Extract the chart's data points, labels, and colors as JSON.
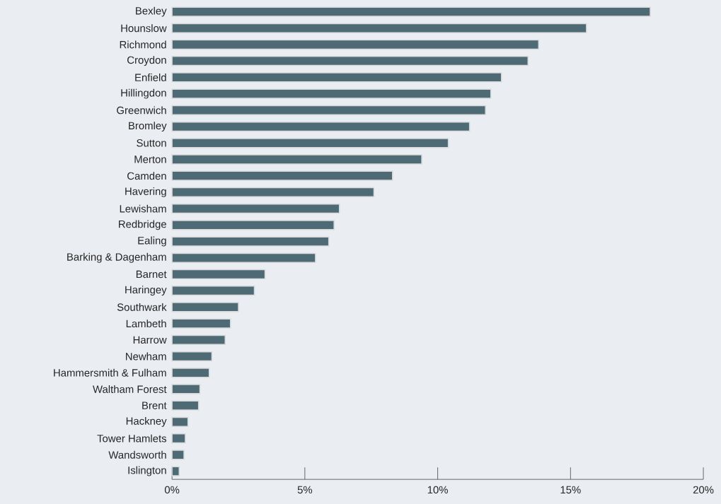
{
  "chart_data": {
    "type": "bar",
    "orientation": "horizontal",
    "categories": [
      "Bexley",
      "Hounslow",
      "Richmond",
      "Croydon",
      "Enfield",
      "Hillingdon",
      "Greenwich",
      "Bromley",
      "Sutton",
      "Merton",
      "Camden",
      "Havering",
      "Lewisham",
      "Redbridge",
      "Ealing",
      "Barking & Dagenham",
      "Barnet",
      "Haringey",
      "Southwark",
      "Lambeth",
      "Harrow",
      "Newham",
      "Hammersmith & Fulham",
      "Waltham Forest",
      "Brent",
      "Hackney",
      "Tower Hamlets",
      "Wandsworth",
      "Islington"
    ],
    "values": [
      18.0,
      15.6,
      13.8,
      13.4,
      12.4,
      12.0,
      11.8,
      11.2,
      10.4,
      9.4,
      8.3,
      7.6,
      6.3,
      6.1,
      5.9,
      5.4,
      3.5,
      3.1,
      2.5,
      2.2,
      2.0,
      1.5,
      1.4,
      1.05,
      1.0,
      0.6,
      0.5,
      0.45,
      0.27
    ],
    "color": "#4d6a75",
    "xlim": [
      0,
      20
    ],
    "xticks": [
      {
        "value": 0,
        "label": "0%"
      },
      {
        "value": 5,
        "label": "5%"
      },
      {
        "value": 10,
        "label": "10%"
      },
      {
        "value": 15,
        "label": "15%"
      },
      {
        "value": 20,
        "label": "20%"
      }
    ]
  }
}
